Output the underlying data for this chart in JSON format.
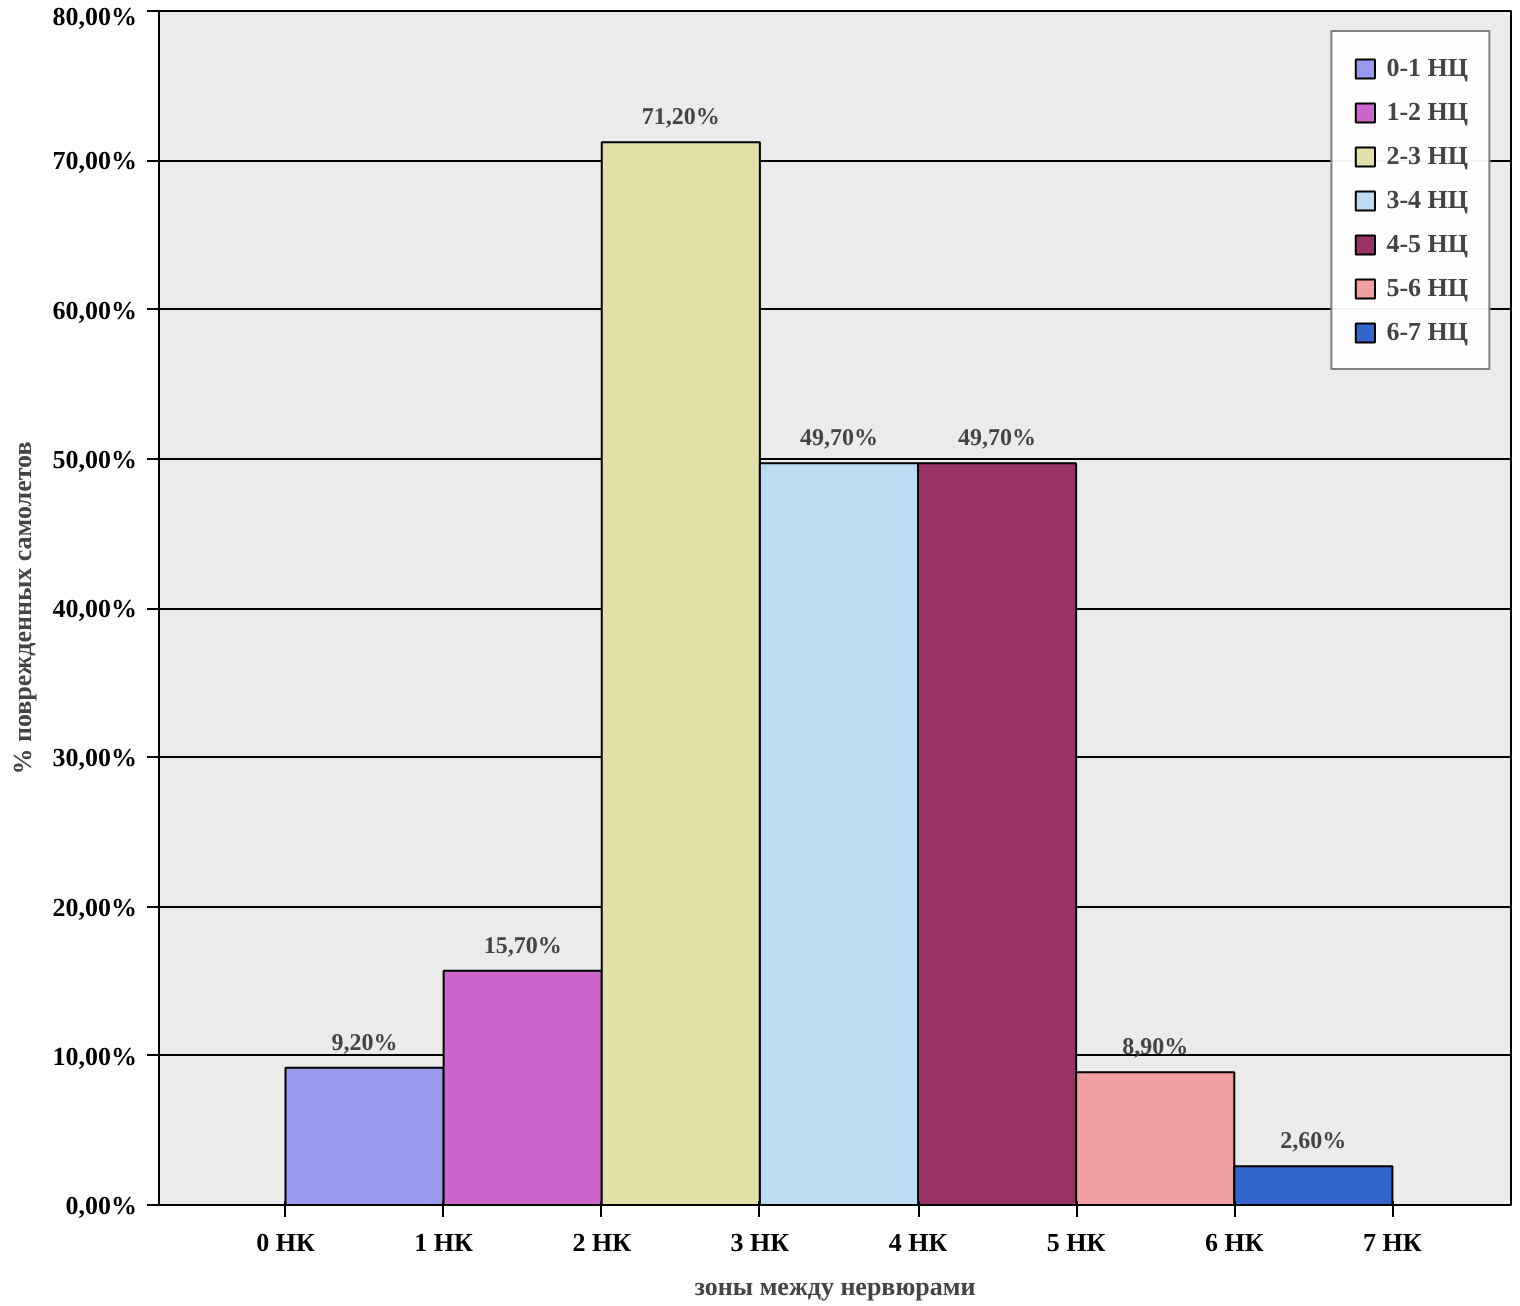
{
  "chart_data": {
    "type": "bar",
    "xlabel": "зоны между нервюрами",
    "ylabel": "% поврежденных самолетов",
    "xlim": [
      -0.8,
      7.75
    ],
    "ylim": [
      0,
      80
    ],
    "xticks": [
      {
        "value": 0,
        "label": "0 НК"
      },
      {
        "value": 1,
        "label": "1 НК"
      },
      {
        "value": 2,
        "label": "2 НК"
      },
      {
        "value": 3,
        "label": "3 НК"
      },
      {
        "value": 4,
        "label": "4 НК"
      },
      {
        "value": 5,
        "label": "5 НК"
      },
      {
        "value": 6,
        "label": "6 НК"
      },
      {
        "value": 7,
        "label": "7 НК"
      }
    ],
    "yticks": [
      {
        "value": 0,
        "label": "0,00%"
      },
      {
        "value": 10,
        "label": "10,00%"
      },
      {
        "value": 20,
        "label": "20,00%"
      },
      {
        "value": 30,
        "label": "30,00%"
      },
      {
        "value": 40,
        "label": "40,00%"
      },
      {
        "value": 50,
        "label": "50,00%"
      },
      {
        "value": 60,
        "label": "60,00%"
      },
      {
        "value": 70,
        "label": "70,00%"
      },
      {
        "value": 80,
        "label": "80,00%"
      }
    ],
    "grid": "y",
    "legend": "top right",
    "series": [
      {
        "name": "0-1 НЦ",
        "color": "#9999ee",
        "x": [
          0.5
        ],
        "values": [
          9.2
        ],
        "value_labels": [
          "9,20%"
        ]
      },
      {
        "name": "1-2 НЦ",
        "color": "#cc66cc",
        "x": [
          1.5
        ],
        "values": [
          15.7
        ],
        "value_labels": [
          "15,70%"
        ]
      },
      {
        "name": "2-3 НЦ",
        "color": "#e0e0a8",
        "x": [
          2.5
        ],
        "values": [
          71.2
        ],
        "value_labels": [
          "71,20%"
        ]
      },
      {
        "name": "3-4 НЦ",
        "color": "#bcdcf4",
        "x": [
          3.5
        ],
        "values": [
          49.7
        ],
        "value_labels": [
          "49,70%"
        ]
      },
      {
        "name": "4-5 НЦ",
        "color": "#993366",
        "x": [
          4.5
        ],
        "values": [
          49.7
        ],
        "value_labels": [
          "49,70%"
        ]
      },
      {
        "name": "5-6 НЦ",
        "color": "#f0a0a0",
        "x": [
          5.5
        ],
        "values": [
          8.9
        ],
        "value_labels": [
          "8,90%"
        ]
      },
      {
        "name": "6-7 НЦ",
        "color": "#3366cc",
        "x": [
          6.5
        ],
        "values": [
          2.6
        ],
        "value_labels": [
          "2,60%"
        ]
      }
    ]
  }
}
